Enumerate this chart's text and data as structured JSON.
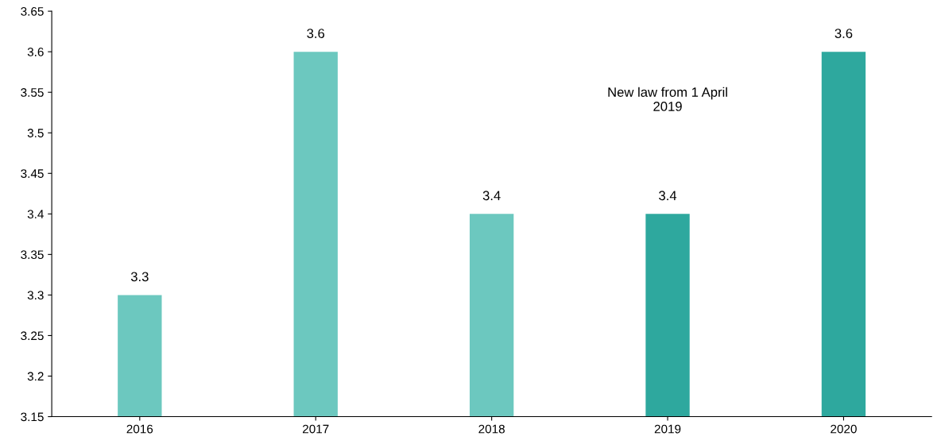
{
  "chart_data": {
    "type": "bar",
    "categories": [
      "2016",
      "2017",
      "2018",
      "2019",
      "2020"
    ],
    "values": [
      3.3,
      3.6,
      3.4,
      3.4,
      3.6
    ],
    "colors": [
      "#6cc8bf",
      "#6cc8bf",
      "#6cc8bf",
      "#2ea89e",
      "#2ea89e"
    ],
    "ylim": [
      3.15,
      3.65
    ],
    "yticks": [
      3.15,
      3.2,
      3.25,
      3.3,
      3.35,
      3.4,
      3.45,
      3.5,
      3.55,
      3.6,
      3.65
    ],
    "data_labels": true,
    "annotations": [
      "New law from 1 April\n2019"
    ],
    "grid": false,
    "legend": false
  }
}
